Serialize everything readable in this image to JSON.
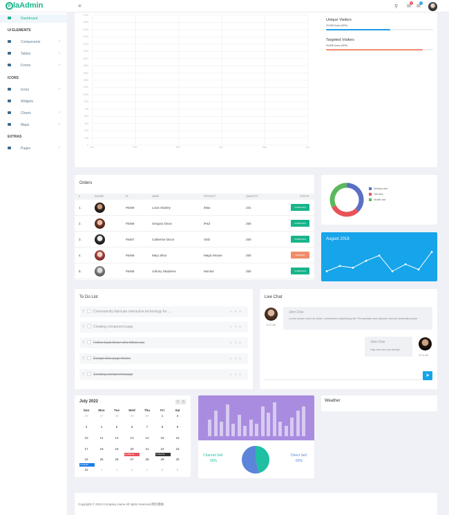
{
  "brand": {
    "e": "e",
    "name": "laAdmin"
  },
  "topbar": {
    "menu_icon": "hamburger-icon",
    "search_icon": "search-icon",
    "bell_badge": "3",
    "mail_badge": "5"
  },
  "sidebar": {
    "dashboard": "Dashboard",
    "ui_head": "UI ELEMENTS",
    "components": "Components",
    "tables": "Tables",
    "forms": "Forms",
    "icons_head": "ICONS",
    "icons": "Icons",
    "widgets": "Widgets",
    "charts": "Charts",
    "maps": "Maps",
    "extras_head": "EXTRAS",
    "pages": "Pages"
  },
  "visits_chart": {
    "y_ticks": [
      "2700",
      "2550",
      "2400",
      "2250",
      "2100",
      "1950",
      "1800",
      "1650",
      "1500",
      "1350",
      "1200",
      "1050",
      "900",
      "750",
      "600",
      "450",
      "300",
      "150",
      "0"
    ],
    "x_ticks": [
      "Jan",
      "Feb",
      "Mar",
      "Apr",
      "May",
      "Jun"
    ]
  },
  "visitors": {
    "unique_title": "Unique Visitors",
    "unique_sub": "29,658 Users (60%)",
    "unique_value": 0.6,
    "targeted_title": "Targeted Visitors",
    "targeted_sub": "99,658 Users (90%)",
    "targeted_value": 0.9,
    "unique_color": "#1c9be6",
    "targeted_color": "#f08c6a"
  },
  "orders": {
    "title": "Orders",
    "headers": {
      "num": "#",
      "avatar": "AVATAR",
      "id": "ID",
      "name": "NAME",
      "product": "PRODUCT",
      "quantity": "QUANTITY",
      "status": "STATUS"
    },
    "rows": [
      {
        "num": "1.",
        "id": "#5469",
        "name": "Louis Stanley",
        "product": "iMax",
        "qty": "231",
        "status": "COMPLETE",
        "color": "#18b48a"
      },
      {
        "num": "2.",
        "id": "#5468",
        "name": "Gregory Dixon",
        "product": "iPad",
        "qty": "250",
        "status": "COMPLETE",
        "color": "#18b48a"
      },
      {
        "num": "3.",
        "id": "#5467",
        "name": "Catherine Dixon",
        "product": "SSD",
        "qty": "250",
        "status": "COMPLETE",
        "color": "#18b48a"
      },
      {
        "num": "4.",
        "id": "#5466",
        "name": "Mary Silva",
        "product": "Magic Mouse",
        "qty": "250",
        "status": "PENDING",
        "color": "#f08c6a"
      },
      {
        "num": "5.",
        "id": "#5465",
        "name": "Johnny Stephens",
        "product": "Monitor",
        "qty": "250",
        "status": "COMPLETE",
        "color": "#18b48a"
      }
    ]
  },
  "device_chart": {
    "legend": [
      "Desktop visit",
      "Tab view",
      "Mobile visit"
    ],
    "colors": [
      "#5b6fc5",
      "#e8535a",
      "#5cb85c"
    ]
  },
  "august": {
    "title": "August 2018",
    "points": [
      3,
      6,
      5,
      9,
      12,
      3,
      7,
      4,
      14
    ],
    "color": "#16a4ea"
  },
  "todo": {
    "title": "To Do List",
    "items": [
      {
        "text": "Conveniently fabricate interactive technology for ....",
        "done": false
      },
      {
        "text": "Creating component page",
        "done": false
      },
      {
        "text": "Follow back those who follow you",
        "done": true
      },
      {
        "text": "Design One page theme",
        "done": true
      },
      {
        "text": "Creating component page",
        "done": true
      }
    ],
    "actions": "✔ ✎ ✕"
  },
  "chat": {
    "title": "Live Chat",
    "msg1": {
      "name": "John Doe",
      "text": "Lorem ipsum dolor sit amet, consectetur adipisicing elit. Perspiciatis sunt placeat velit ad reiciendis ipsam",
      "time": "11:11 am"
    },
    "msg2": {
      "name": "John Doe",
      "text": "Hay how are you doing?",
      "time": "11:11 am"
    }
  },
  "calendar": {
    "title": "July 2022",
    "days": [
      "Sun",
      "Mon",
      "Tue",
      "Wed",
      "Thu",
      "Fri",
      "Sat"
    ],
    "weeks": [
      [
        "26",
        "27",
        "28",
        "29",
        "30",
        "1",
        "2"
      ],
      [
        "3",
        "4",
        "5",
        "6",
        "7",
        "8",
        "9"
      ],
      [
        "10",
        "11",
        "12",
        "13",
        "14",
        "15",
        "16"
      ],
      [
        "17",
        "18",
        "19",
        "20",
        "21",
        "22",
        "23"
      ],
      [
        "24",
        "25",
        "26",
        "27",
        "28",
        "29",
        "30"
      ],
      [
        "31",
        "1",
        "2",
        "3",
        "4",
        "5",
        "6"
      ]
    ],
    "events": {
      "e1": "11:25a Se",
      "e2": "9:18a Mo",
      "e3": "9:19a Bu"
    }
  },
  "sales": {
    "bars": [
      8,
      12,
      7,
      15,
      6,
      10,
      5,
      8,
      6,
      14,
      11,
      16,
      7,
      5,
      9,
      12,
      14
    ],
    "channel_label": "Channel Sell",
    "channel_pct": "55%",
    "direct_label": "Direct Sell",
    "direct_pct": "65%",
    "channel_value": 55,
    "direct_value": 65,
    "top_color": "#a98ce0",
    "channel_color": "#1ebfa2",
    "direct_color": "#5b85d8"
  },
  "weather": {
    "title": "Weather"
  },
  "footer": {
    "text": "Copyright © 2022.Company name All rights reserved.网页模板"
  }
}
